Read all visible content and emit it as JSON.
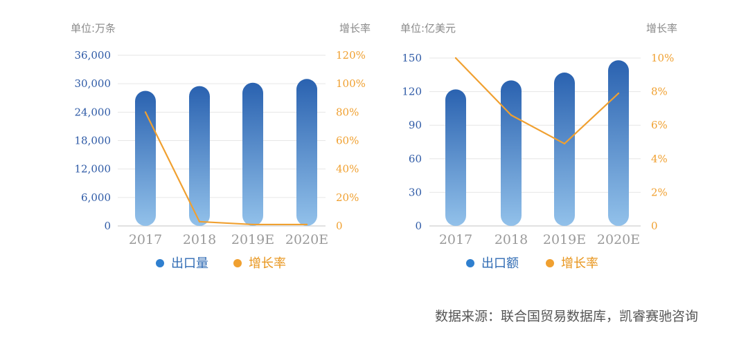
{
  "chart_data": [
    {
      "type": "bar",
      "left_unit": "单位:万条",
      "right_unit": "增长率",
      "categories": [
        "2017",
        "2018",
        "2019E",
        "2020E"
      ],
      "ylim": [
        0,
        36000
      ],
      "y_ticks": [
        "0",
        "6,000",
        "12,000",
        "18,000",
        "24,000",
        "30,000",
        "36,000"
      ],
      "y2lim": [
        0,
        120
      ],
      "y2_ticks": [
        "0",
        "20%",
        "40%",
        "60%",
        "80%",
        "100%",
        "120%"
      ],
      "series": [
        {
          "name": "出口量",
          "kind": "bar",
          "axis": "left",
          "values": [
            28500,
            29500,
            30200,
            31000
          ]
        },
        {
          "name": "增长率",
          "kind": "line",
          "axis": "right",
          "values": [
            80,
            3,
            1,
            1
          ]
        }
      ],
      "legend_position": "bottom"
    },
    {
      "type": "bar",
      "left_unit": "单位:亿美元",
      "right_unit": "增长率",
      "categories": [
        "2017",
        "2018",
        "2019E",
        "2020E"
      ],
      "ylim": [
        0,
        150
      ],
      "y_ticks": [
        "0",
        "30",
        "60",
        "90",
        "120",
        "150"
      ],
      "y2lim": [
        0,
        10
      ],
      "y2_ticks": [
        "0",
        "2%",
        "4%",
        "6%",
        "8%",
        "10%"
      ],
      "series": [
        {
          "name": "出口额",
          "kind": "bar",
          "axis": "left",
          "values": [
            122,
            130,
            137,
            148
          ]
        },
        {
          "name": "增长率",
          "kind": "line",
          "axis": "right",
          "values": [
            10,
            6.6,
            4.9,
            7.9
          ]
        }
      ],
      "legend_position": "bottom"
    }
  ],
  "source": "数据来源：联合国贸易数据库，凯睿赛驰咨询",
  "colors": {
    "bar_top": "#2a62b0",
    "bar_bottom": "#92c1ea",
    "line": "#f0a030",
    "left_tick": "#2e5aa6",
    "right_tick": "#f0a030"
  }
}
